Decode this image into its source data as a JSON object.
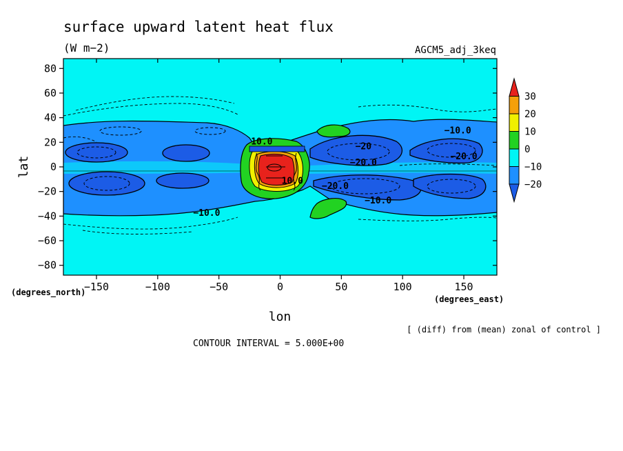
{
  "chart_data": {
    "type": "heatmap",
    "title": "surface upward latent heat flux",
    "units": "(W m−2)",
    "dataset_label": "AGCM5_adj_3keq",
    "xlabel": "lon",
    "ylabel": "lat",
    "x_unit_label": "(degrees_east)",
    "y_unit_label": "(degrees_north)",
    "xlim": [
      -177,
      177
    ],
    "ylim": [
      -88,
      88
    ],
    "x_ticks": [
      -150,
      -100,
      -50,
      0,
      50,
      100,
      150
    ],
    "x_tick_labels": [
      "−150",
      "−100",
      "−50",
      "0",
      "50",
      "100",
      "150"
    ],
    "y_ticks": [
      80,
      60,
      40,
      20,
      0,
      -20,
      -40,
      -60,
      -80
    ],
    "y_tick_labels": [
      "80",
      "60",
      "40",
      "20",
      "0",
      "−20",
      "−40",
      "−60",
      "−80"
    ],
    "note": "[ (diff) from (mean) zonal of control ]",
    "contour_interval_label": "CONTOUR INTERVAL = 5.000E+00",
    "colorbar": {
      "labels": [
        "30",
        "20",
        "10",
        "0",
        "−10",
        "−20"
      ],
      "levels": [
        30,
        20,
        10,
        0,
        -10,
        -20
      ],
      "colors": [
        "#e8221c",
        "#f5a00a",
        "#f0f000",
        "#22d222",
        "#00f5f5",
        "#1e90ff",
        "#1c5ce6"
      ]
    },
    "contour_labels": [
      {
        "text": "10.0",
        "lon": -15,
        "lat": 21
      },
      {
        "text": "−10.0",
        "lon": 145,
        "lat": 30
      },
      {
        "text": "−20.0",
        "lon": 68,
        "lat": 4
      },
      {
        "text": "−20.0",
        "lon": 150,
        "lat": 9
      },
      {
        "text": "−20.0",
        "lon": 45,
        "lat": -15
      },
      {
        "text": "−10.0",
        "lon": 80,
        "lat": -27
      },
      {
        "text": "−10.0",
        "lon": -60,
        "lat": -37
      },
      {
        "text": "−20",
        "lon": 68,
        "lat": 17
      },
      {
        "text": "10.0",
        "lon": 10,
        "lat": -11
      }
    ],
    "regions": [
      {
        "class": "-10..-20",
        "lon": [
          -175,
          -135
        ],
        "lat": [
          3,
          17
        ]
      },
      {
        "class": "-10..-20",
        "lon": [
          -110,
          -70
        ],
        "lat": [
          3,
          17
        ]
      },
      {
        "class": "-10..-20",
        "lon": [
          -175,
          -115
        ],
        "lat": [
          -28,
          -8
        ]
      },
      {
        "class": "-10..-20",
        "lon": [
          -100,
          -55
        ],
        "lat": [
          -24,
          -10
        ]
      },
      {
        "class": "-10..-20",
        "lon": [
          30,
          120
        ],
        "lat": [
          -28,
          -6
        ]
      },
      {
        "class": "-10..-20",
        "lon": [
          25,
          100
        ],
        "lat": [
          2,
          22
        ]
      },
      {
        "class": "-10..-20",
        "lon": [
          100,
          170
        ],
        "lat": [
          -26,
          -6
        ]
      },
      {
        "class": "-10..-20",
        "lon": [
          105,
          170
        ],
        "lat": [
          2,
          24
        ]
      },
      {
        "class": "0..10",
        "lon": [
          -30,
          20
        ],
        "lat": [
          -24,
          24
        ]
      },
      {
        "class": "0..10",
        "lon": [
          28,
          58
        ],
        "lat": [
          24,
          33
        ]
      },
      {
        "class": "0..10",
        "lon": [
          22,
          58
        ],
        "lat": [
          -42,
          -27
        ]
      },
      {
        "class": "10..20",
        "lon": [
          -22,
          18
        ],
        "lat": [
          -16,
          17
        ]
      },
      {
        "class": "20..30",
        "lon": [
          -20,
          15
        ],
        "lat": [
          -13,
          14
        ]
      },
      {
        "class": ">30",
        "lon": [
          -18,
          10
        ],
        "lat": [
          -12,
          13
        ]
      }
    ]
  }
}
